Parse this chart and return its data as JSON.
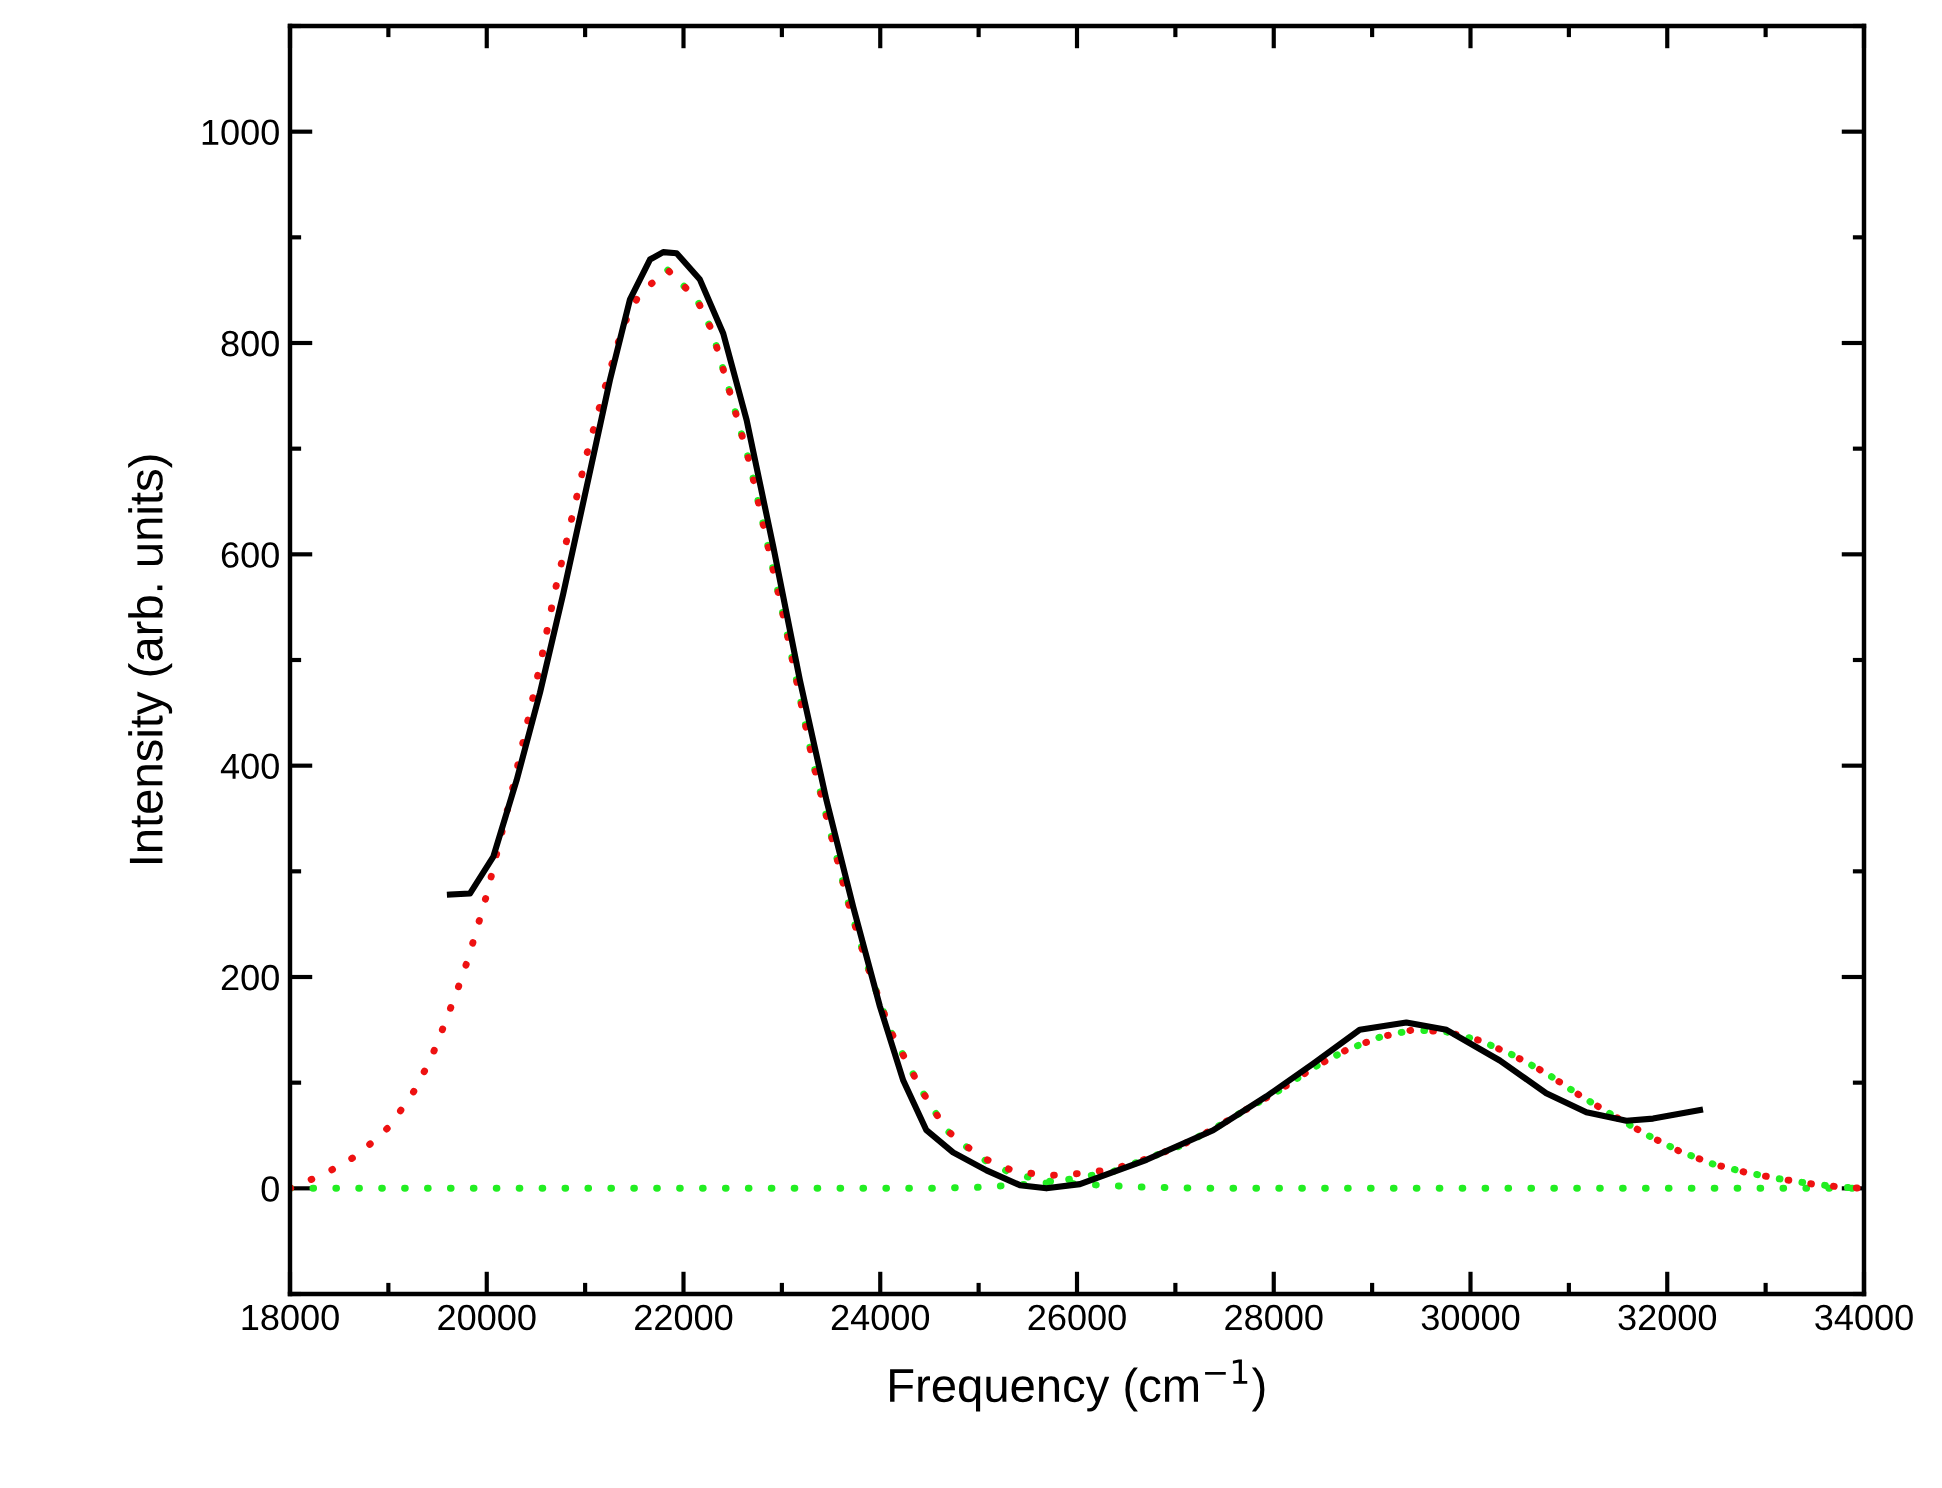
{
  "chart_data": {
    "type": "line",
    "xlabel": "Frequency (cm$^{−1}$)",
    "ylabel": "Intensity (arb. units)",
    "xlim": [
      18000,
      34000
    ],
    "xticks": [
      18000,
      20000,
      22000,
      24000,
      26000,
      28000,
      30000,
      32000,
      34000
    ],
    "ylim": [
      -100,
      1100
    ],
    "yticks": [
      0,
      200,
      400,
      600,
      800,
      1000
    ],
    "grid": false,
    "legend": false,
    "series": [
      {
        "color": "#22ee22",
        "line_style": "dotted",
        "x": [
          18000,
          24438,
          25012,
          25337,
          25689,
          26015,
          26368,
          26707,
          27045,
          27384,
          27709,
          28061,
          28400,
          28739,
          29077,
          29416,
          29756,
          30093,
          30433,
          30770,
          31110,
          31449,
          31787,
          32126,
          32465,
          32803,
          33142,
          33480,
          33785,
          34000
        ],
        "values": [
          0,
          0,
          1,
          3,
          5,
          10,
          16,
          28,
          40,
          56,
          74,
          93,
          114,
          131,
          143,
          150,
          148,
          140,
          126,
          109,
          88,
          69,
          51,
          35,
          23,
          15,
          9,
          4,
          1,
          0
        ]
      },
      {
        "color": "#22ee22",
        "line_style": "dotted",
        "x": [
          21840,
          22132,
          22288,
          22491,
          22674,
          22898,
          23047,
          23183,
          23319,
          23488,
          23657,
          23860,
          24098,
          24438,
          24673,
          25012,
          25337,
          25689,
          26015,
          26707,
          27384,
          34000
        ],
        "values": [
          869,
          842,
          812,
          747,
          686,
          591,
          528,
          465,
          402,
          339,
          276,
          213,
          150,
          90,
          55,
          29,
          14,
          7,
          4,
          1,
          0,
          0
        ]
      },
      {
        "color": "#ee1111",
        "line_style": "dotted",
        "x": [
          18000,
          18360,
          18697,
          19016,
          19254,
          19430,
          19565,
          19695,
          19810,
          19911,
          20006,
          20167,
          20254,
          20404,
          20553,
          20688,
          20844,
          21000,
          21183,
          21386,
          21555,
          21840,
          22132,
          22288,
          22491,
          22674,
          22898,
          23047,
          23183,
          23319,
          23488,
          23657,
          23860,
          24098,
          24438,
          24673,
          25012,
          25337,
          25689,
          26015,
          26368,
          26707,
          27045,
          27384,
          27709,
          28061,
          28400,
          28739,
          29077,
          29416,
          29756,
          30093,
          30433,
          30770,
          31110,
          31449,
          31787,
          32126,
          32465,
          32803,
          33142,
          33480,
          33785,
          34000
        ],
        "values": [
          0,
          14,
          32,
          59,
          91,
          122,
          154,
          186,
          217,
          249,
          280,
          342,
          375,
          437,
          500,
          563,
          626,
          689,
          752,
          816,
          847,
          869,
          842,
          812,
          747,
          686,
          591,
          528,
          465,
          402,
          339,
          276,
          213,
          150,
          90,
          55,
          30,
          17,
          12,
          14,
          18,
          28,
          40,
          56,
          74,
          93,
          114,
          131,
          143,
          150,
          148,
          140,
          126,
          109,
          88,
          69,
          51,
          35,
          23,
          15,
          9,
          4,
          1,
          0
        ]
      },
      {
        "color": "#000000",
        "line_style": "solid",
        "x": [
          19626,
          19829,
          20067,
          20303,
          20541,
          20778,
          21016,
          21252,
          21455,
          21659,
          21794,
          21930,
          22167,
          22404,
          22642,
          22913,
          23183,
          23454,
          23726,
          23997,
          24234,
          24469,
          24740,
          25080,
          25419,
          25689,
          26030,
          26707,
          27384,
          27925,
          28400,
          28874,
          29348,
          29756,
          30298,
          30770,
          31178,
          31585,
          31856,
          32333
        ],
        "values": [
          278,
          279,
          314,
          386,
          469,
          563,
          664,
          765,
          841,
          879,
          886,
          885,
          860,
          809,
          727,
          607,
          481,
          367,
          266,
          172,
          102,
          55,
          34,
          17,
          3,
          0,
          4,
          27,
          55,
          87,
          118,
          150,
          157,
          150,
          121,
          90,
          72,
          64,
          66,
          74
        ]
      }
    ]
  }
}
